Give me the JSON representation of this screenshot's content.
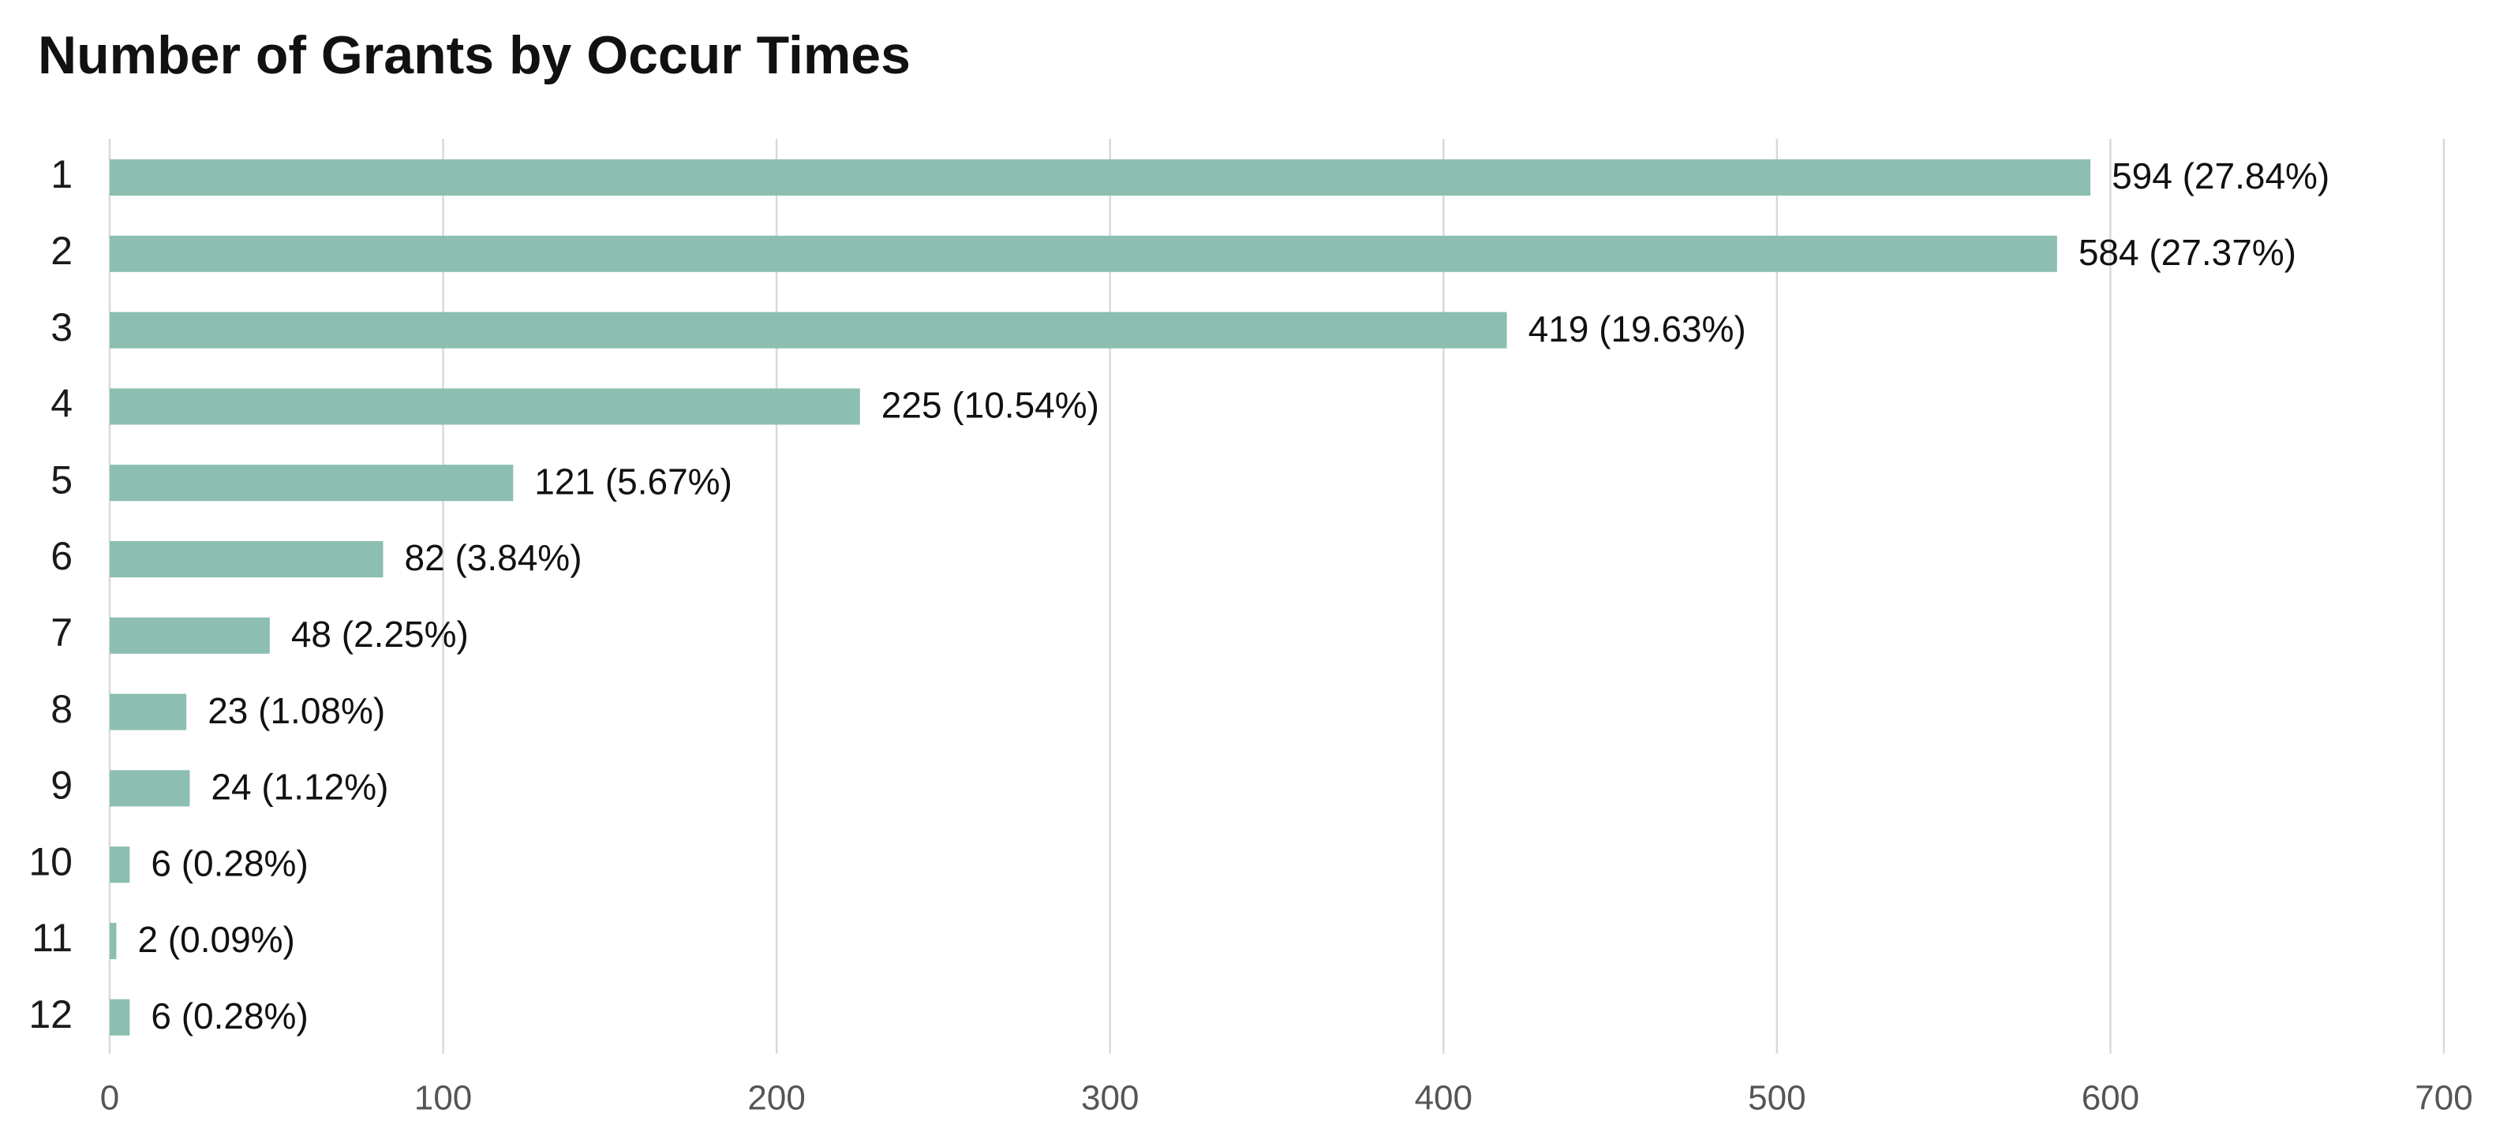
{
  "chart_data": {
    "type": "bar",
    "orientation": "horizontal",
    "title": "Number of Grants by Occur Times",
    "xlabel": "",
    "ylabel": "",
    "categories": [
      "1",
      "2",
      "3",
      "4",
      "5",
      "6",
      "7",
      "8",
      "9",
      "10",
      "11",
      "12"
    ],
    "values": [
      594,
      584,
      419,
      225,
      121,
      82,
      48,
      23,
      24,
      6,
      2,
      6
    ],
    "data_labels": [
      "594 (27.84%)",
      "584 (27.37%)",
      "419 (19.63%)",
      "225 (10.54%)",
      "121 (5.67%)",
      "82 (3.84%)",
      "48 (2.25%)",
      "23 (1.08%)",
      "24 (1.12%)",
      "6 (0.28%)",
      "2 (0.09%)",
      "6 (0.28%)"
    ],
    "xlim": [
      0,
      700
    ],
    "x_ticks": [
      "0",
      "100",
      "200",
      "300",
      "400",
      "500",
      "600",
      "700"
    ],
    "grid": "vertical",
    "legend": "none",
    "bar_color": "#8cbfb1",
    "gridline_color": "#d9d9d9"
  }
}
